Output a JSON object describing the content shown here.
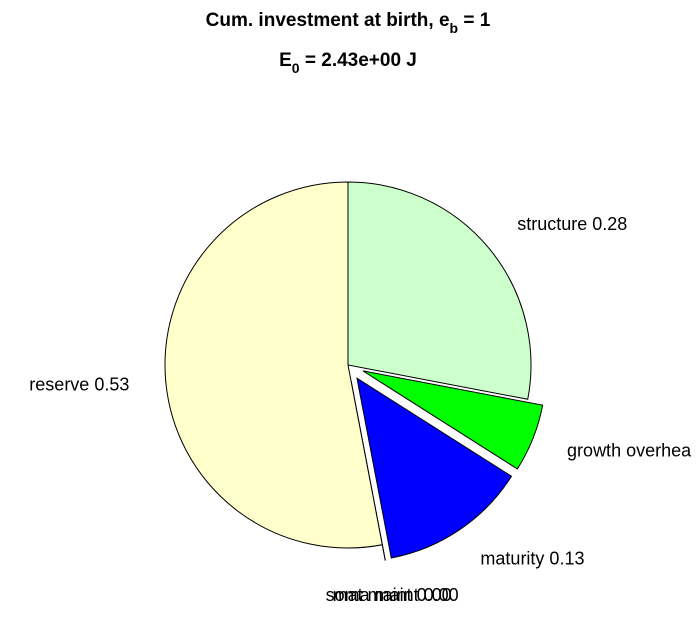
{
  "chart_data": {
    "type": "pie",
    "title_parts": [
      "Cum. investment at birth, e",
      "b",
      " = 1"
    ],
    "subtitle_parts": [
      "E",
      "0",
      " = 2.43e+00 J"
    ],
    "labels": [
      "structure 0.28",
      "growth overhea",
      "maturity 0.13",
      "soma maint 0.00",
      "mat maint 0.00",
      "reserve 0.53"
    ],
    "values": [
      0.28,
      0.06,
      0.13,
      0,
      0,
      0.53
    ],
    "colors": [
      "#ccffcc",
      "#00ff00",
      "#0000ff",
      "#ffffff",
      "#ffffff",
      "#ffffcc"
    ],
    "explode": [
      false,
      true,
      true,
      true,
      true,
      false
    ]
  }
}
